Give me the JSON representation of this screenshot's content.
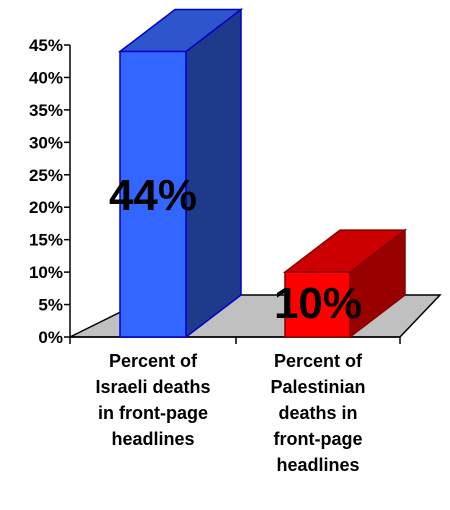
{
  "chart_data": {
    "type": "bar",
    "categories": [
      "Percent of Israeli deaths in front-page headlines",
      "Percent of Palestinian deaths in front-page headlines"
    ],
    "category_lines": [
      [
        "Percent of",
        "Israeli deaths",
        "in front-page",
        "headlines"
      ],
      [
        "Percent of",
        "Palestinian",
        "deaths in",
        "front-page",
        "headlines"
      ]
    ],
    "values": [
      44,
      10
    ],
    "data_labels": [
      "44%",
      "10%"
    ],
    "y_ticks": [
      "0%",
      "5%",
      "10%",
      "15%",
      "20%",
      "25%",
      "30%",
      "35%",
      "40%",
      "45%"
    ],
    "ylim": [
      0,
      45
    ],
    "title": "",
    "xlabel": "",
    "ylabel": "",
    "grid": false,
    "legend": "none",
    "three_d": true,
    "colors": {
      "bar1_front": "#3366ff",
      "bar1_top": "#2f55cc",
      "bar1_side": "#1e3a8a",
      "bar1_edge": "#0000cc",
      "bar2_front": "#ff0000",
      "bar2_top": "#cc0000",
      "bar2_side": "#990000",
      "bar2_edge": "#880000",
      "floor": "#c0c0c0",
      "text": "#000000"
    }
  }
}
